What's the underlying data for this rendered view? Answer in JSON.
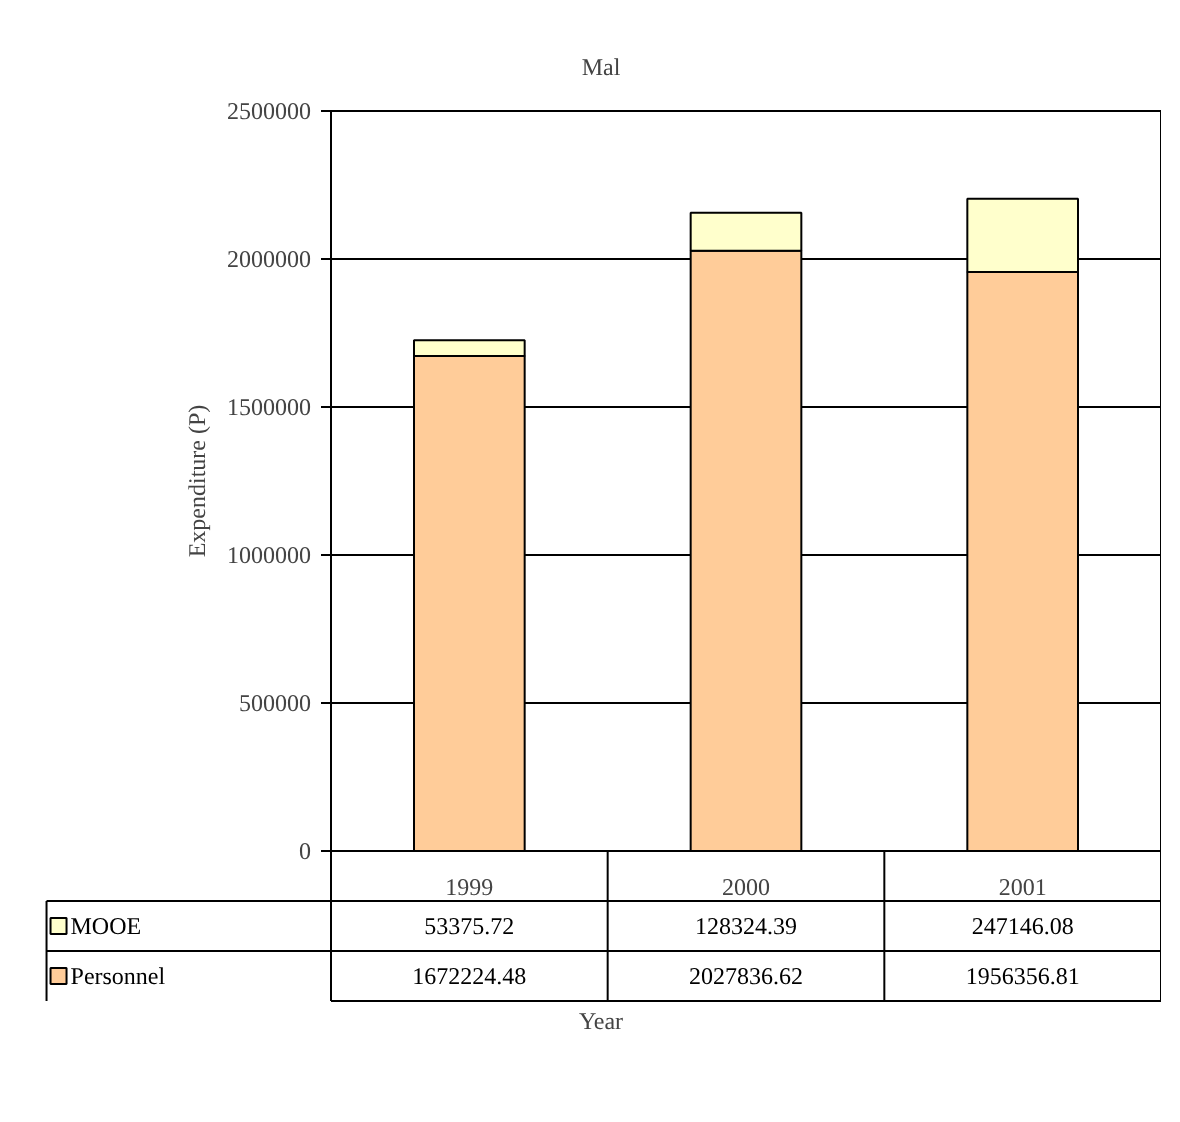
{
  "chart_data": {
    "type": "bar",
    "title": "Mal",
    "xlabel": "Year",
    "ylabel": "Expenditure (P)",
    "categories": [
      "1999",
      "2000",
      "2001"
    ],
    "stacked": true,
    "series": [
      {
        "name": "Personnel",
        "color": "#ffcc99",
        "values": [
          1672224.48,
          2027836.62,
          1956356.81
        ]
      },
      {
        "name": "MOOE",
        "color": "#ffffcc",
        "values": [
          53375.72,
          128324.39,
          247146.08
        ]
      }
    ],
    "ylim": [
      0,
      2500000
    ],
    "yticks": [
      0,
      500000,
      1000000,
      1500000,
      2000000,
      2500000
    ],
    "grid": "y",
    "legend": "bottom",
    "data_labels": true
  }
}
